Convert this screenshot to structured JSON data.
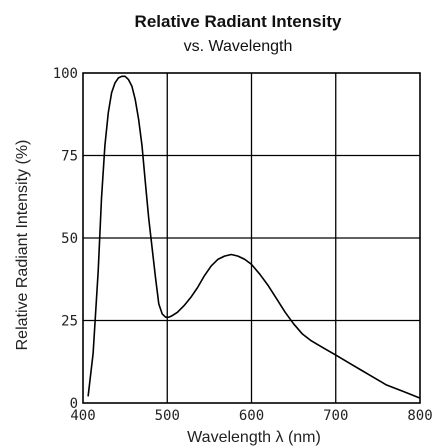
{
  "chart_data": {
    "type": "line",
    "title": "Relative Radiant Intensity",
    "subtitle": "vs. Wavelength",
    "xlabel": "Wavelength λ (nm)",
    "ylabel": "Relative Radiant Intensity (%)",
    "xlim": [
      400,
      800
    ],
    "ylim": [
      0,
      100
    ],
    "x_ticks": [
      "400",
      "500",
      "600",
      "700",
      "800"
    ],
    "y_ticks": [
      "100",
      "75",
      "50",
      "25",
      "0"
    ],
    "grid": true,
    "series": [
      {
        "x": [
          406,
          412,
          418,
          422,
          426,
          430,
          434,
          438,
          442,
          446,
          450,
          454,
          458,
          462,
          466,
          470,
          474,
          478,
          482,
          486,
          490,
          494,
          498,
          502,
          506,
          512,
          520,
          528,
          536,
          544,
          552,
          560,
          568,
          576,
          584,
          592,
          600,
          610,
          620,
          630,
          640,
          650,
          660,
          670,
          680,
          690,
          700,
          710,
          720,
          730,
          740,
          750,
          760,
          770,
          780,
          790,
          800
        ],
        "y": [
          2,
          15,
          40,
          62,
          78,
          88,
          94,
          97,
          98.5,
          99,
          99,
          98,
          96,
          92,
          86,
          78,
          67,
          56,
          47,
          38,
          30,
          27,
          26,
          26,
          26.5,
          27.5,
          29.5,
          32,
          35,
          38.5,
          41.5,
          43.5,
          44.5,
          45,
          44.5,
          43.5,
          42,
          39,
          35.5,
          31.5,
          27.5,
          24,
          21,
          19,
          17.5,
          16,
          14.5,
          13,
          11.5,
          10,
          8.5,
          7,
          5.5,
          4.5,
          3.5,
          2.5,
          1.5
        ]
      }
    ]
  }
}
